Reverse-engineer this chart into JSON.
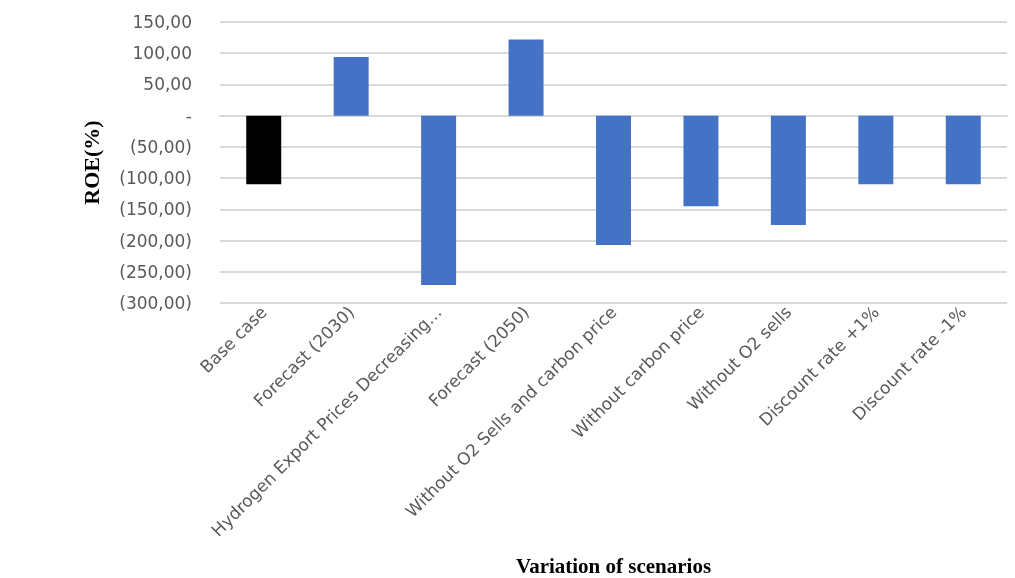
{
  "chart_data": {
    "type": "bar",
    "xlabel": "Variation of scenarios",
    "ylabel": "ROE(%)",
    "categories": [
      "Base case",
      "Forecast (2030)",
      "Hydrogen Export Prices Decreasing…",
      "Forecast (2050)",
      "Without O2 Sells and carbon price",
      "Without carbon price",
      "Without O2 sells",
      "Discount rate +1%",
      "Discount rate -1%"
    ],
    "values": [
      -110,
      94,
      -271,
      122,
      -207,
      -145,
      -175,
      -110,
      -110
    ],
    "colors": [
      "#000000",
      "#4472c4",
      "#4472c4",
      "#4472c4",
      "#4472c4",
      "#4472c4",
      "#4472c4",
      "#4472c4",
      "#4472c4"
    ],
    "ylim": [
      -300,
      150
    ],
    "yticks": [
      {
        "value": -300,
        "label": "(300,00)"
      },
      {
        "value": -250,
        "label": "(250,00)"
      },
      {
        "value": -200,
        "label": "(200,00)"
      },
      {
        "value": -150,
        "label": "(150,00)"
      },
      {
        "value": -100,
        "label": "(100,00)"
      },
      {
        "value": -50,
        "label": "(50,00)"
      },
      {
        "value": 0,
        "label": "-"
      },
      {
        "value": 50,
        "label": "50,00"
      },
      {
        "value": 100,
        "label": "100,00"
      },
      {
        "value": 150,
        "label": "150,00"
      }
    ],
    "grid": "y"
  }
}
